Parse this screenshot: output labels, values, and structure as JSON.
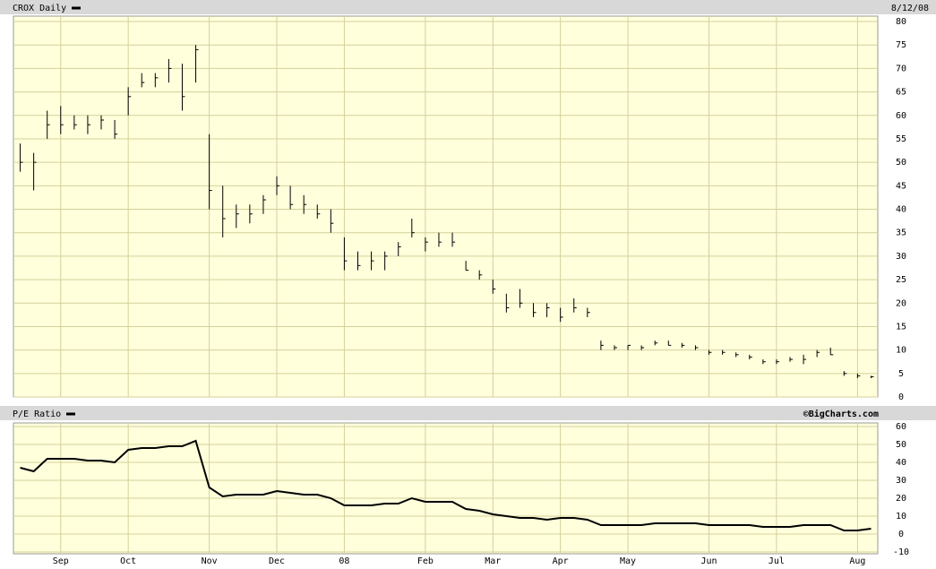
{
  "chart_data": [
    {
      "type": "ohlc",
      "title": "CROX Daily",
      "date_label": "8/12/08",
      "color": "#000000",
      "low": [
        48,
        44,
        55,
        56,
        57,
        56,
        57,
        55,
        60,
        66,
        66,
        67,
        61,
        67,
        40,
        34,
        36,
        37,
        39,
        43,
        40,
        39,
        38,
        35,
        27,
        27,
        27,
        27,
        30,
        34,
        31,
        32,
        32,
        27,
        25,
        22,
        18,
        19,
        17,
        17,
        16,
        18,
        17,
        10,
        10,
        10,
        10,
        11,
        11,
        10.5,
        10,
        9,
        9,
        8.5,
        8,
        7,
        7,
        7.5,
        7,
        8.5,
        9,
        4.5,
        4,
        4
      ],
      "high": [
        54,
        52,
        61,
        62,
        60,
        60,
        60,
        59,
        66,
        69,
        69,
        72,
        71,
        75,
        56,
        45,
        41,
        41,
        43,
        47,
        45,
        43,
        41,
        40,
        34,
        31,
        31,
        31,
        33,
        38,
        34,
        35,
        35,
        29,
        27,
        25,
        22,
        23,
        20,
        20,
        19,
        21,
        19,
        12,
        11,
        11,
        11,
        12,
        12,
        11.5,
        11,
        10,
        10,
        9.5,
        9,
        8,
        8,
        8.5,
        9,
        10,
        10.5,
        5.5,
        5,
        4.5
      ],
      "close": [
        50,
        50,
        58,
        58,
        58,
        58,
        59,
        56,
        64,
        67,
        68,
        70,
        64,
        74,
        44,
        38,
        39,
        39,
        42,
        45,
        41,
        41,
        39,
        37,
        29,
        28,
        29,
        30,
        32,
        35,
        33,
        33,
        33,
        27,
        26,
        23,
        19,
        20,
        18,
        19,
        17,
        19,
        18,
        11,
        10.5,
        11,
        10.5,
        11.5,
        11,
        11,
        10.5,
        9.5,
        9.5,
        9,
        8.5,
        7.5,
        7.5,
        8,
        8,
        9.5,
        9,
        5,
        4.5,
        4.3
      ],
      "ylim": [
        0,
        80
      ],
      "yticks": [
        0,
        5,
        10,
        15,
        20,
        25,
        30,
        35,
        40,
        45,
        50,
        55,
        60,
        65,
        70,
        75,
        80
      ],
      "grid": true
    },
    {
      "type": "line",
      "title": "P/E Ratio",
      "credit": "©BigCharts.com",
      "color": "#000000",
      "categories": [
        null,
        null,
        null,
        "Sep",
        null,
        null,
        null,
        null,
        "Oct",
        null,
        null,
        null,
        null,
        null,
        "Nov",
        null,
        null,
        null,
        null,
        "Dec",
        null,
        null,
        null,
        null,
        "08",
        null,
        null,
        null,
        null,
        null,
        "Feb",
        null,
        null,
        null,
        null,
        "Mar",
        null,
        null,
        null,
        null,
        "Apr",
        null,
        null,
        null,
        null,
        "May",
        null,
        null,
        null,
        null,
        null,
        "Jun",
        null,
        null,
        null,
        null,
        "Jul",
        null,
        null,
        null,
        null,
        null,
        "Aug",
        null
      ],
      "values": [
        37,
        35,
        42,
        42,
        42,
        41,
        41,
        40,
        47,
        48,
        48,
        49,
        49,
        52,
        26,
        21,
        22,
        22,
        22,
        24,
        23,
        22,
        22,
        20,
        16,
        16,
        16,
        17,
        17,
        20,
        18,
        18,
        18,
        14,
        13,
        11,
        10,
        9,
        9,
        8,
        9,
        9,
        8,
        5,
        5,
        5,
        5,
        6,
        6,
        6,
        6,
        5,
        5,
        5,
        5,
        4,
        4,
        4,
        5,
        5,
        5,
        2,
        2,
        3
      ],
      "ylim": [
        -10,
        60
      ],
      "yticks": [
        -10,
        0,
        10,
        20,
        30,
        40,
        50,
        60
      ],
      "grid": true
    }
  ]
}
